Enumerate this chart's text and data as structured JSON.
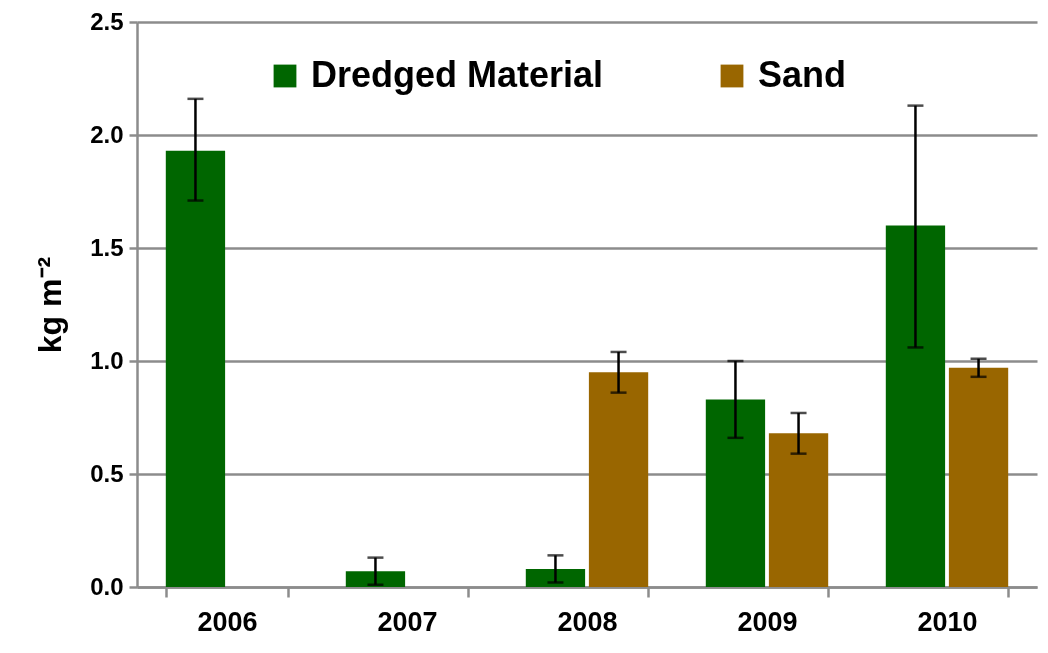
{
  "chart_data": {
    "type": "bar",
    "categories": [
      "2006",
      "2007",
      "2008",
      "2009",
      "2010"
    ],
    "ylabel": "kg m⁻²",
    "ylim": [
      0,
      2.5
    ],
    "yticks": [
      {
        "value": 0,
        "label": "0.0"
      },
      0.5,
      {
        "value": 1,
        "label": "1.0"
      },
      1.5,
      {
        "value": 2,
        "label": "2.0"
      },
      2.5
    ],
    "grid": "y",
    "legend": "top",
    "series": [
      {
        "name": "Dredged Material",
        "color": "#006600",
        "values": [
          1.93,
          0.07,
          0.08,
          0.83,
          1.6
        ],
        "errors": [
          [
            1.71,
            2.16
          ],
          [
            0.01,
            0.13
          ],
          [
            0.02,
            0.14
          ],
          [
            0.66,
            1.0
          ],
          [
            1.06,
            2.13
          ]
        ]
      },
      {
        "name": "Sand",
        "color": "#996600",
        "values": [
          null,
          null,
          0.95,
          0.68,
          0.97
        ],
        "errors": [
          null,
          null,
          [
            0.86,
            1.04
          ],
          [
            0.59,
            0.77
          ],
          [
            0.93,
            1.01
          ]
        ]
      }
    ]
  }
}
